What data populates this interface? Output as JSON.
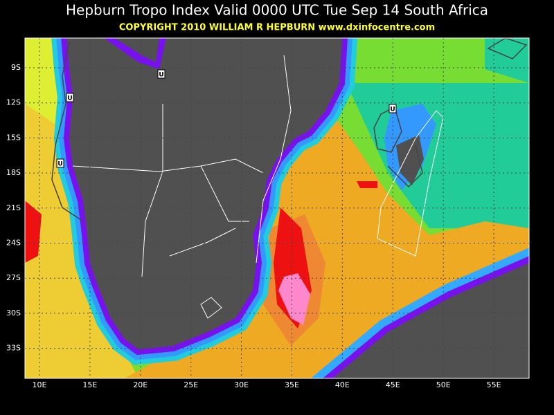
{
  "header": {
    "title": "Hepburn Tropo Index Valid 0000 UTC Tue Sep 14 South Africa",
    "copyright": "COPYRIGHT 2010   WILLIAM R HEPBURN   www.dxinfocentre.com"
  },
  "map": {
    "lat_labels": [
      "9S",
      "12S",
      "15S",
      "18S",
      "21S",
      "24S",
      "27S",
      "30S",
      "33S"
    ],
    "lon_labels": [
      "10E",
      "15E",
      "20E",
      "25E",
      "30E",
      "35E",
      "40E",
      "45E",
      "50E",
      "55E"
    ],
    "markers": [
      "U",
      "U",
      "U",
      "U"
    ]
  }
}
